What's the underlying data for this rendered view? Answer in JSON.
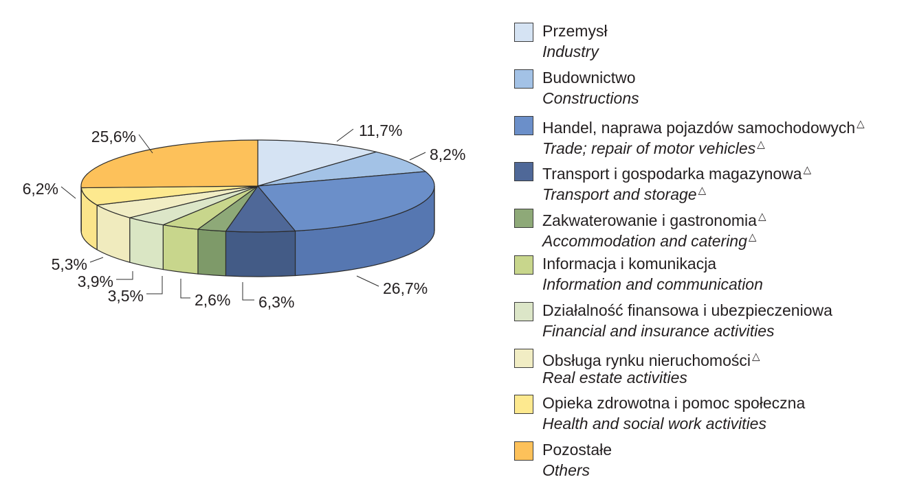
{
  "chart_data": {
    "type": "pie",
    "title": "",
    "slices": [
      {
        "label": "Przemysł",
        "label_en": "Industry",
        "value": 11.7,
        "value_label": "11,7%",
        "color": "#d5e3f3",
        "side_color": "#b9cbe0",
        "mark_pl": "",
        "mark_en": ""
      },
      {
        "label": "Budownictwo",
        "label_en": "Constructions",
        "value": 8.2,
        "value_label": "8,2%",
        "color": "#a3c2e6",
        "side_color": "#86a6cc",
        "mark_pl": "",
        "mark_en": ""
      },
      {
        "label": "Handel, naprawa pojazdów samochodowych",
        "label_en": "Trade; repair of motor vehicles",
        "value": 26.7,
        "value_label": "26,7%",
        "color": "#6b8fc9",
        "side_color": "#5677b1",
        "mark_pl": "△",
        "mark_en": "△"
      },
      {
        "label": "Transport i gospodarka magazynowa",
        "label_en": "Transport and storage",
        "value": 6.3,
        "value_label": "6,3%",
        "color": "#4f6898",
        "side_color": "#435b86",
        "mark_pl": "△",
        "mark_en": "△"
      },
      {
        "label": "Zakwaterowanie i gastronomia",
        "label_en": "Accommodation and catering",
        "value": 2.6,
        "value_label": "2,6%",
        "color": "#8ea978",
        "side_color": "#7e9a69",
        "mark_pl": "△",
        "mark_en": "△"
      },
      {
        "label": "Informacja i komunikacja",
        "label_en": "Information and communication",
        "value": 3.5,
        "value_label": "3,5%",
        "color": "#c8d68c",
        "side_color": "#c8d68c",
        "mark_pl": "",
        "mark_en": ""
      },
      {
        "label": "Działalność finansowa i ubezpieczeniowa",
        "label_en": "Financial and insurance activities",
        "value": 3.9,
        "value_label": "3,9%",
        "color": "#dce6c8",
        "side_color": "#dae6c4",
        "mark_pl": "",
        "mark_en": ""
      },
      {
        "label": "Obsługa rynku nieruchomości",
        "label_en": "Real estate activities",
        "value": 5.3,
        "value_label": "5,3%",
        "color": "#f1edc4",
        "side_color": "#f0ebbe",
        "mark_pl": "△",
        "mark_en": ""
      },
      {
        "label": "Opieka zdrowotna i pomoc społeczna",
        "label_en": "Health and social work activities",
        "value": 6.2,
        "value_label": "6,2%",
        "color": "#fde98f",
        "side_color": "#fbe58b",
        "mark_pl": "",
        "mark_en": ""
      },
      {
        "label": "Pozostałe",
        "label_en": "Others",
        "value": 25.6,
        "value_label": "25,6%",
        "color": "#fdc15a",
        "side_color": "#f0b24c",
        "mark_pl": "",
        "mark_en": ""
      }
    ]
  }
}
